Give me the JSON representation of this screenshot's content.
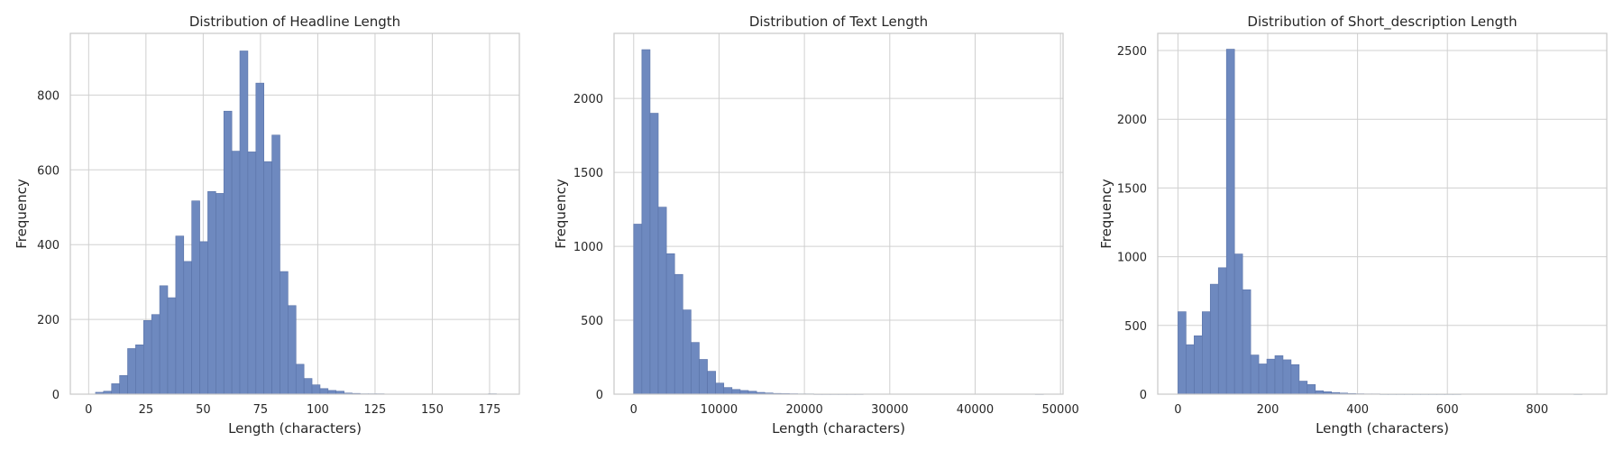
{
  "colors": {
    "bar_fill": "#6e89bf",
    "bar_edge": "#5a73a8",
    "grid": "#d0d0d0",
    "frame": "#c8c8c8",
    "text": "#262626",
    "background": "#ffffff"
  },
  "chart_data": [
    {
      "type": "bar",
      "title": "Distribution of Headline Length",
      "xlabel": "Length (characters)",
      "ylabel": "Frequency",
      "grid": true,
      "xlim": [
        -8,
        188
      ],
      "ylim": [
        0,
        965
      ],
      "xticks": [
        0,
        25,
        50,
        75,
        100,
        125,
        150,
        175
      ],
      "yticks": [
        0,
        200,
        400,
        600,
        800
      ],
      "bin_start": 3,
      "bin_width": 3.5,
      "values": [
        5,
        8,
        28,
        50,
        122,
        132,
        197,
        213,
        290,
        258,
        423,
        355,
        517,
        408,
        542,
        537,
        757,
        650,
        918,
        648,
        832,
        622,
        693,
        328,
        237,
        80,
        42,
        25,
        15,
        10,
        8,
        3,
        2,
        1,
        1,
        1,
        0,
        0,
        0,
        0,
        0,
        0,
        0,
        0,
        0,
        0,
        0,
        0,
        0,
        1
      ]
    },
    {
      "type": "bar",
      "title": "Distribution of Text Length",
      "xlabel": "Length (characters)",
      "ylabel": "Frequency",
      "grid": true,
      "xlim": [
        -2300,
        50300
      ],
      "ylim": [
        0,
        2440
      ],
      "xticks": [
        0,
        10000,
        20000,
        30000,
        40000,
        50000
      ],
      "yticks": [
        0,
        500,
        1000,
        1500,
        2000
      ],
      "bin_start": 0,
      "bin_width": 960,
      "values": [
        1150,
        2330,
        1900,
        1265,
        950,
        810,
        570,
        350,
        235,
        155,
        75,
        45,
        32,
        25,
        20,
        12,
        8,
        5,
        4,
        3,
        2,
        2,
        1,
        1,
        1,
        1,
        1,
        1,
        0,
        0,
        0,
        0,
        0,
        0,
        0,
        0,
        0,
        0,
        0,
        0,
        0,
        0,
        0,
        0,
        0,
        0,
        0,
        0,
        0,
        1
      ]
    },
    {
      "type": "bar",
      "title": "Distribution of Short_description Length",
      "xlabel": "Length (characters)",
      "ylabel": "Frequency",
      "grid": true,
      "xlim": [
        -45,
        955
      ],
      "ylim": [
        0,
        2625
      ],
      "xticks": [
        0,
        200,
        400,
        600,
        800
      ],
      "yticks": [
        0,
        500,
        1000,
        1500,
        2000,
        2500
      ],
      "bin_start": 0,
      "bin_width": 18,
      "values": [
        600,
        360,
        425,
        600,
        800,
        920,
        2510,
        1020,
        760,
        285,
        220,
        255,
        280,
        250,
        215,
        95,
        70,
        25,
        18,
        12,
        8,
        5,
        3,
        2,
        2,
        1,
        1,
        1,
        1,
        1,
        1,
        1,
        1,
        1,
        1,
        0,
        0,
        0,
        0,
        0,
        0,
        0,
        0,
        0,
        0,
        0,
        0,
        0,
        0,
        1
      ]
    }
  ]
}
